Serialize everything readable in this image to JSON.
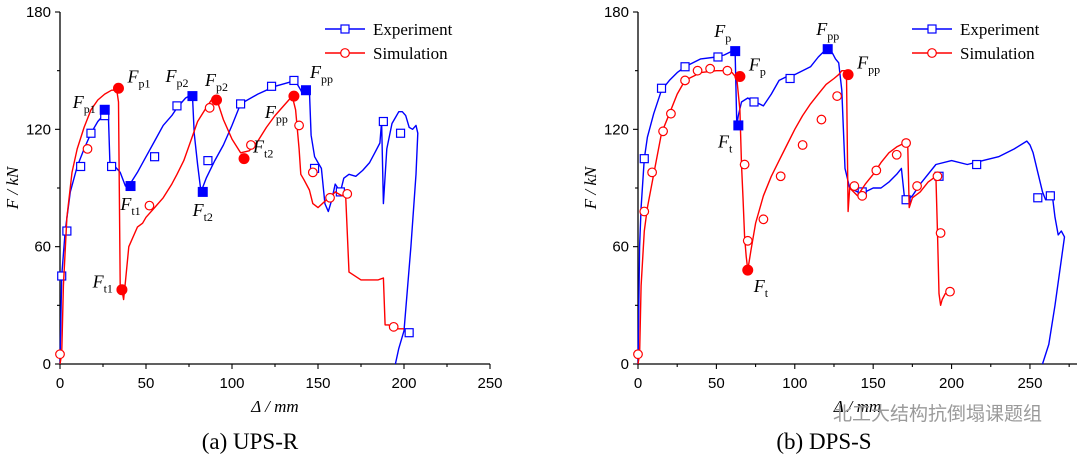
{
  "watermark": {
    "text": "北工大结构抗倒塌课题组"
  },
  "chart_data": [
    {
      "type": "line",
      "caption": "(a) UPS-R",
      "xlabel": "Δ / mm",
      "ylabel": "F / kN",
      "xlim": [
        0,
        250
      ],
      "ylim": [
        0,
        180
      ],
      "xticks": [
        0,
        50,
        100,
        150,
        200,
        250
      ],
      "yticks": [
        0,
        60,
        120,
        180
      ],
      "legend_position": "top-right",
      "series": [
        {
          "name": "Experiment",
          "color": "#0000ff",
          "marker": "open-square",
          "x": [
            0,
            1,
            3,
            6,
            10,
            14,
            18,
            22,
            25,
            27,
            28,
            29,
            32,
            35,
            38,
            40,
            45,
            50,
            55,
            60,
            65,
            68,
            70,
            73,
            75,
            77,
            78,
            80,
            82,
            85,
            90,
            95,
            100,
            105,
            115,
            125,
            133,
            136,
            138,
            140,
            141,
            143,
            145,
            146,
            148,
            150,
            152,
            154,
            156,
            158,
            160,
            163,
            165,
            168,
            172,
            176,
            180,
            183,
            186,
            187,
            188,
            190,
            193,
            195,
            197,
            199,
            201,
            203,
            205,
            207,
            208,
            207,
            204,
            200,
            197,
            195
          ],
          "y": [
            0,
            45,
            68,
            88,
            101,
            110,
            118,
            124,
            127,
            129,
            130,
            103,
            101,
            98,
            91,
            91,
            98,
            106,
            114,
            122,
            127,
            131,
            133,
            136,
            137,
            138,
            118,
            102,
            88,
            95,
            104,
            112,
            122,
            133,
            138,
            142,
            144,
            145,
            143,
            140,
            138,
            141,
            140,
            117,
            106,
            103,
            100,
            82,
            78,
            84,
            92,
            88,
            95,
            97,
            96,
            99,
            103,
            108,
            113,
            124,
            82,
            110,
            123,
            126,
            129,
            129,
            127,
            121,
            120,
            122,
            118,
            97,
            60,
            17,
            8,
            0
          ],
          "markers": [
            [
              1,
              45
            ],
            [
              4,
              68
            ],
            [
              12,
              101
            ],
            [
              18,
              118
            ],
            [
              26,
              127
            ],
            [
              30,
              101
            ],
            [
              55,
              106
            ],
            [
              68,
              132
            ],
            [
              86,
              104
            ],
            [
              105,
              133
            ],
            [
              123,
              142
            ],
            [
              136,
              145
            ],
            [
              148,
              100
            ],
            [
              163,
              88
            ],
            [
              188,
              124
            ],
            [
              198,
              118
            ],
            [
              203,
              16
            ]
          ]
        },
        {
          "name": "Simulation",
          "color": "#ff0000",
          "marker": "open-circle",
          "x": [
            0,
            1,
            2,
            4,
            7,
            10,
            14,
            18,
            22,
            26,
            30,
            33,
            34,
            34.5,
            35,
            36,
            37,
            38,
            40,
            45,
            48,
            50,
            55,
            60,
            65,
            68,
            72,
            76,
            80,
            85,
            88,
            90,
            92,
            95,
            100,
            105,
            110,
            115,
            120,
            125,
            130,
            133,
            135,
            137,
            139,
            140,
            142,
            145,
            147,
            150,
            155,
            158,
            160,
            162,
            164,
            166,
            168,
            175,
            180,
            185,
            188,
            189,
            191,
            195,
            200
          ],
          "y": [
            0,
            5,
            40,
            75,
            98,
            110,
            121,
            130,
            135,
            138,
            140,
            140,
            134,
            90,
            40,
            38,
            33,
            42,
            60,
            70,
            72,
            75,
            80,
            85,
            92,
            97,
            104,
            114,
            124,
            131,
            135,
            136,
            133,
            125,
            115,
            108,
            109,
            114,
            121,
            127,
            132,
            135,
            137,
            130,
            110,
            97,
            94,
            89,
            82,
            80,
            84,
            86,
            88,
            87,
            86,
            88,
            47,
            43,
            43,
            43,
            44,
            20,
            20,
            18,
            18
          ],
          "markers": [
            [
              0,
              5
            ],
            [
              16,
              110
            ],
            [
              52,
              81
            ],
            [
              87,
              131
            ],
            [
              111,
              112
            ],
            [
              139,
              122
            ],
            [
              147,
              98
            ],
            [
              157,
              85
            ],
            [
              167,
              87
            ],
            [
              194,
              19
            ]
          ]
        }
      ],
      "annotations": [
        {
          "main": "F",
          "sub": "p1",
          "x": 34,
          "y": 141,
          "style": "filled-circle",
          "color": "#ff0000",
          "label_anchor": "right"
        },
        {
          "main": "F",
          "sub": "p1",
          "x": 26,
          "y": 130,
          "style": "filled-square",
          "color": "#0000ff",
          "label_anchor": "left"
        },
        {
          "main": "F",
          "sub": "t1",
          "x": 36,
          "y": 38,
          "style": "filled-circle",
          "color": "#ff0000",
          "label_anchor": "left"
        },
        {
          "main": "F",
          "sub": "t1",
          "x": 41,
          "y": 91,
          "style": "filled-square",
          "color": "#0000ff",
          "label_anchor": "below"
        },
        {
          "main": "F",
          "sub": "p2",
          "x": 77,
          "y": 137,
          "style": "filled-square",
          "color": "#0000ff",
          "label_anchor": "above-left"
        },
        {
          "main": "F",
          "sub": "p2",
          "x": 91,
          "y": 135,
          "style": "filled-circle",
          "color": "#ff0000",
          "label_anchor": "above"
        },
        {
          "main": "F",
          "sub": "t2",
          "x": 83,
          "y": 88,
          "style": "filled-square",
          "color": "#0000ff",
          "label_anchor": "below"
        },
        {
          "main": "F",
          "sub": "t2",
          "x": 107,
          "y": 105,
          "style": "filled-circle",
          "color": "#ff0000",
          "label_anchor": "right"
        },
        {
          "main": "F",
          "sub": "pp",
          "x": 143,
          "y": 140,
          "style": "filled-square",
          "color": "#0000ff",
          "label_anchor": "above-right"
        },
        {
          "main": "F",
          "sub": "pp",
          "x": 136,
          "y": 137,
          "style": "filled-circle",
          "color": "#ff0000",
          "label_anchor": "below-left"
        }
      ]
    },
    {
      "type": "line",
      "caption": "(b) DPS-S",
      "xlabel": "Δ / mm",
      "ylabel": "F / kN",
      "xlim": [
        0,
        280
      ],
      "ylim": [
        0,
        180
      ],
      "xticks": [
        0,
        50,
        100,
        150,
        200,
        250
      ],
      "yticks": [
        0,
        60,
        120,
        180
      ],
      "legend_position": "top-right",
      "series": [
        {
          "name": "Experiment",
          "color": "#0000ff",
          "marker": "open-square",
          "x": [
            0,
            1,
            2,
            4,
            6,
            10,
            15,
            20,
            25,
            30,
            40,
            50,
            55,
            60,
            62,
            63,
            64,
            66,
            68,
            70,
            72,
            75,
            80,
            85,
            90,
            95,
            100,
            110,
            115,
            120,
            124,
            126,
            128,
            130,
            132,
            135,
            140,
            145,
            150,
            155,
            160,
            165,
            168,
            170,
            172,
            175,
            180,
            190,
            200,
            210,
            220,
            230,
            240,
            248,
            250,
            252,
            255,
            258,
            260,
            262,
            264,
            266,
            268,
            270,
            272,
            266,
            262,
            258
          ],
          "y": [
            0,
            60,
            80,
            105,
            116,
            128,
            140,
            145,
            149,
            152,
            156,
            157,
            158,
            160,
            158,
            122,
            127,
            134,
            135,
            136,
            135,
            134,
            132,
            138,
            145,
            147,
            148,
            152,
            157,
            161,
            159,
            156,
            154,
            140,
            100,
            90,
            88,
            88,
            90,
            90,
            93,
            97,
            100,
            85,
            84,
            86,
            92,
            102,
            104,
            102,
            104,
            106,
            110,
            114,
            112,
            108,
            98,
            88,
            84,
            86,
            88,
            75,
            66,
            68,
            65,
            30,
            10,
            0
          ],
          "markers": [
            [
              4,
              105
            ],
            [
              15,
              141
            ],
            [
              30,
              152
            ],
            [
              51,
              157
            ],
            [
              74,
              134
            ],
            [
              97,
              146
            ],
            [
              143,
              88
            ],
            [
              171,
              84
            ],
            [
              192,
              96
            ],
            [
              216,
              102
            ],
            [
              255,
              85
            ],
            [
              263,
              86
            ]
          ]
        },
        {
          "name": "Simulation",
          "color": "#ff0000",
          "marker": "open-circle",
          "x": [
            0,
            1,
            2,
            4,
            6,
            10,
            15,
            20,
            25,
            30,
            40,
            50,
            55,
            60,
            63,
            65,
            66,
            67,
            68,
            69,
            70,
            72,
            75,
            80,
            85,
            90,
            95,
            100,
            105,
            110,
            115,
            120,
            125,
            128,
            130,
            132,
            133,
            134,
            135,
            140,
            145,
            150,
            155,
            160,
            165,
            170,
            172,
            173,
            175,
            180,
            185,
            190,
            191,
            192,
            193,
            194,
            196,
            198
          ],
          "y": [
            0,
            5,
            40,
            68,
            80,
            97,
            118,
            128,
            138,
            145,
            149,
            150,
            150,
            149,
            146,
            130,
            102,
            85,
            65,
            55,
            48,
            58,
            72,
            86,
            96,
            104,
            112,
            120,
            127,
            133,
            138,
            143,
            146,
            148,
            150,
            150,
            148,
            78,
            90,
            86,
            92,
            97,
            103,
            108,
            111,
            113,
            113,
            80,
            85,
            88,
            93,
            96,
            67,
            36,
            30,
            33,
            36,
            37
          ],
          "markers": [
            [
              0,
              5
            ],
            [
              4,
              78
            ],
            [
              9,
              98
            ],
            [
              16,
              119
            ],
            [
              21,
              128
            ],
            [
              30,
              145
            ],
            [
              38,
              150
            ],
            [
              46,
              151
            ],
            [
              57,
              150
            ],
            [
              68,
              102
            ],
            [
              70,
              63
            ],
            [
              80,
              74
            ],
            [
              91,
              96
            ],
            [
              105,
              112
            ],
            [
              117,
              125
            ],
            [
              127,
              137
            ],
            [
              138,
              91
            ],
            [
              143,
              86
            ],
            [
              152,
              99
            ],
            [
              165,
              107
            ],
            [
              171,
              113
            ],
            [
              178,
              91
            ],
            [
              191,
              96
            ],
            [
              193,
              67
            ],
            [
              199,
              37
            ]
          ]
        }
      ],
      "annotations": [
        {
          "main": "F",
          "sub": "p",
          "x": 62,
          "y": 160,
          "style": "filled-square",
          "color": "#0000ff",
          "label_anchor": "above-left"
        },
        {
          "main": "F",
          "sub": "p",
          "x": 65,
          "y": 147,
          "style": "filled-circle",
          "color": "#ff0000",
          "label_anchor": "right"
        },
        {
          "main": "F",
          "sub": "t",
          "x": 64,
          "y": 122,
          "style": "filled-square",
          "color": "#0000ff",
          "label_anchor": "below-left"
        },
        {
          "main": "F",
          "sub": "t",
          "x": 70,
          "y": 48,
          "style": "filled-circle",
          "color": "#ff0000",
          "label_anchor": "below-right"
        },
        {
          "main": "F",
          "sub": "pp",
          "x": 121,
          "y": 161,
          "style": "filled-square",
          "color": "#0000ff",
          "label_anchor": "above"
        },
        {
          "main": "F",
          "sub": "pp",
          "x": 134,
          "y": 148,
          "style": "filled-circle",
          "color": "#ff0000",
          "label_anchor": "right"
        }
      ]
    }
  ]
}
